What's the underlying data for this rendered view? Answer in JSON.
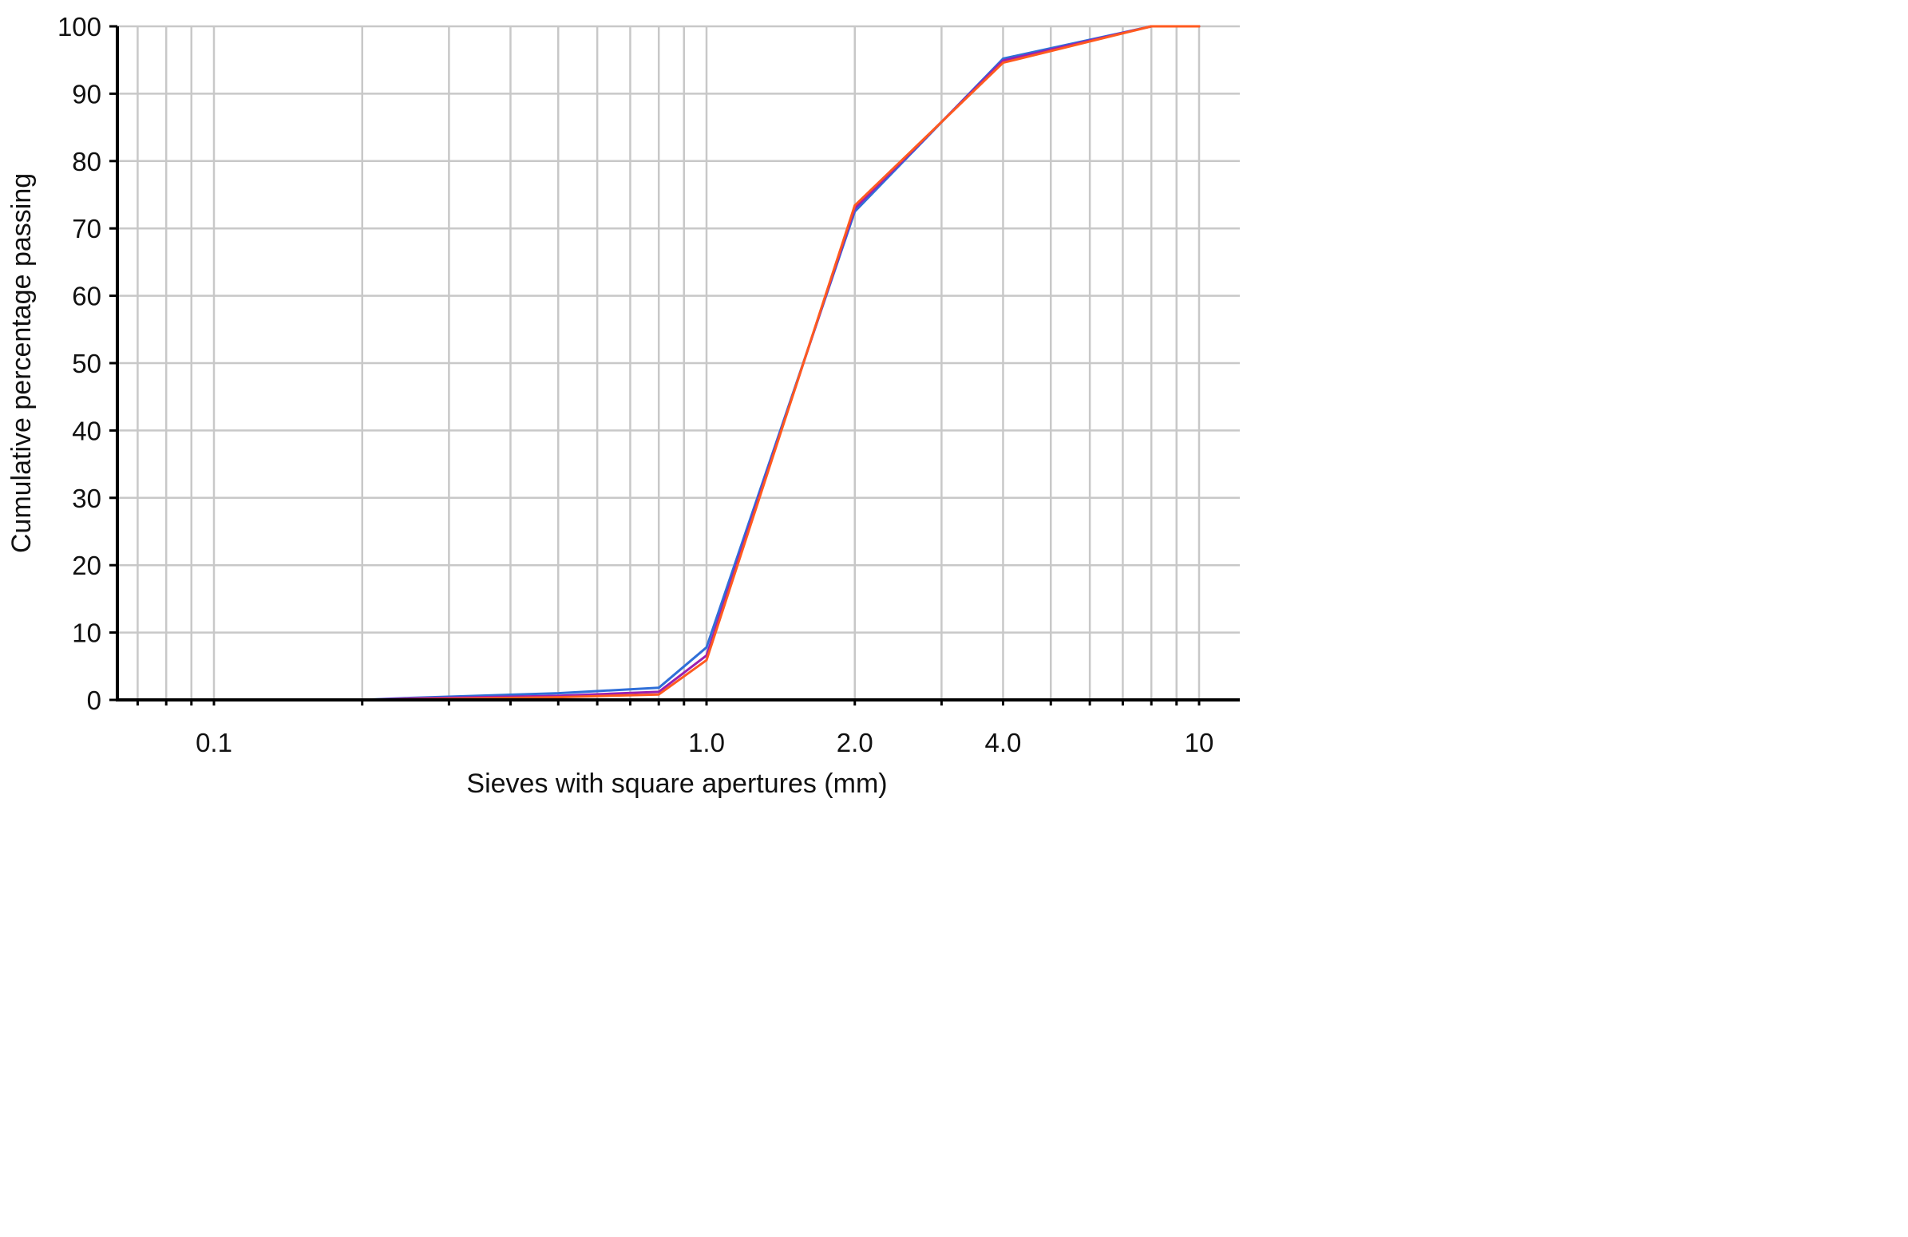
{
  "chart_data": {
    "type": "line",
    "title": "",
    "xlabel": "Sieves with square apertures (mm)",
    "ylabel": "Cumulative percentage passing",
    "x_scale": "log",
    "xlim": [
      0.063,
      10
    ],
    "ylim": [
      0,
      100
    ],
    "x_ticks": [
      0.1,
      1.0,
      2.0,
      4.0,
      10
    ],
    "x_tick_labels": [
      "0.1",
      "1.0",
      "2.0",
      "4.0",
      "10"
    ],
    "y_ticks": [
      0,
      10,
      20,
      30,
      40,
      50,
      60,
      70,
      80,
      90,
      100
    ],
    "y_tick_labels": [
      "0",
      "10",
      "20",
      "30",
      "40",
      "50",
      "60",
      "70",
      "80",
      "90",
      "100"
    ],
    "grid": true,
    "series": [
      {
        "color": "#2f6fd8",
        "x": [
          0.063,
          0.2,
          0.25,
          0.5,
          0.8,
          1.0,
          2.0,
          4.0,
          8.0,
          10
        ],
        "y": [
          0,
          0,
          0.3,
          1.0,
          1.8,
          7.8,
          72.5,
          95.2,
          100,
          100
        ]
      },
      {
        "color": "#9b1fb0",
        "x": [
          0.063,
          0.2,
          0.25,
          0.5,
          0.8,
          1.0,
          2.0,
          4.0,
          8.0,
          10
        ],
        "y": [
          0,
          0,
          0.2,
          0.6,
          1.2,
          6.6,
          73.0,
          94.9,
          100,
          100
        ]
      },
      {
        "color": "#ff5a1f",
        "x": [
          0.063,
          0.2,
          0.25,
          0.5,
          0.8,
          1.0,
          2.0,
          4.0,
          8.0,
          10
        ],
        "y": [
          0,
          0,
          0.1,
          0.4,
          0.8,
          5.9,
          73.4,
          94.6,
          100,
          100
        ]
      }
    ]
  }
}
